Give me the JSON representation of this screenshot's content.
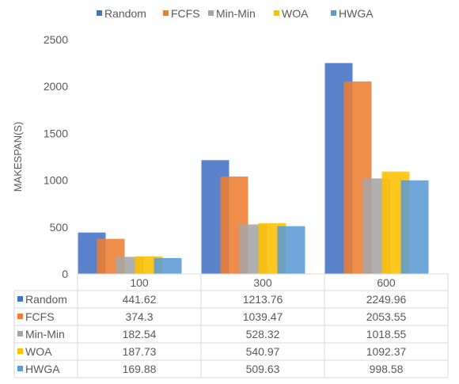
{
  "chart_data": {
    "type": "bar",
    "title": "",
    "xlabel": "",
    "ylabel": "MAKESPAN(S)",
    "categories": [
      "100",
      "300",
      "600"
    ],
    "ylim": [
      0,
      2500
    ],
    "yticks": [
      0,
      500,
      1000,
      1500,
      2000,
      2500
    ],
    "grid": false,
    "legend_position": "top",
    "data_table": true,
    "series": [
      {
        "name": "Random",
        "color": "#4472C4",
        "values": [
          441.62,
          1213.76,
          2249.96
        ]
      },
      {
        "name": "FCFS",
        "color": "#ED7D31",
        "values": [
          374.3,
          1039.47,
          2053.55
        ]
      },
      {
        "name": "Min-Min",
        "color": "#A5A5A5",
        "values": [
          182.54,
          528.32,
          1018.55
        ]
      },
      {
        "name": "WOA",
        "color": "#FFC000",
        "values": [
          187.73,
          540.97,
          1092.37
        ]
      },
      {
        "name": "HWGA",
        "color": "#5B9BD5",
        "values": [
          169.88,
          509.63,
          998.58
        ]
      }
    ]
  }
}
